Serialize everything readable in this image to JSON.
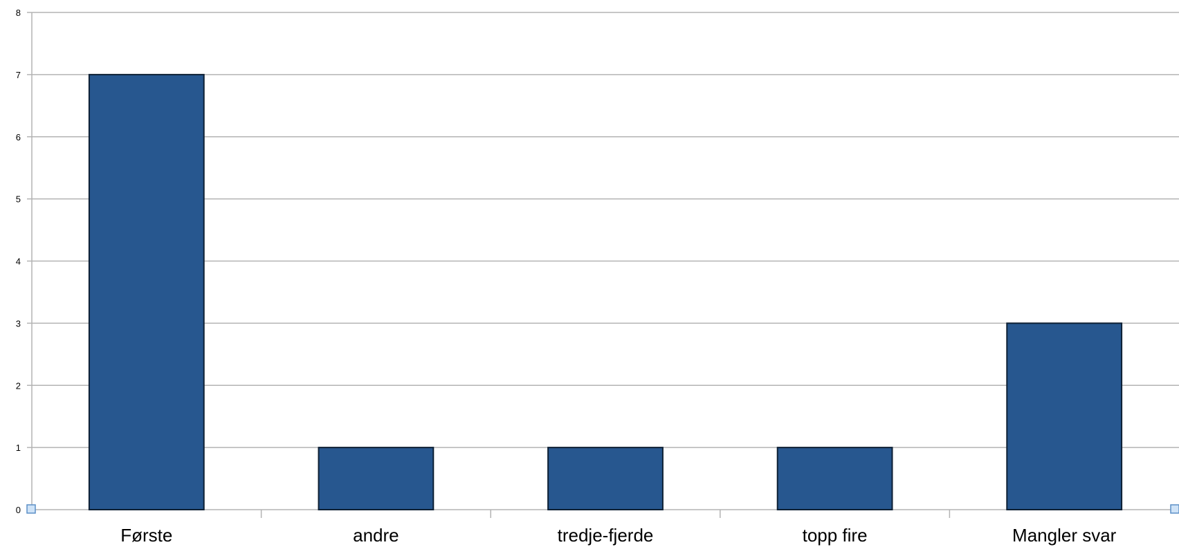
{
  "chart_data": {
    "type": "bar",
    "categories": [
      "Første",
      "andre",
      "tredje-fjerde",
      "topp fire",
      "Mangler svar"
    ],
    "values": [
      7,
      1,
      1,
      1,
      3
    ],
    "title": "",
    "xlabel": "",
    "ylabel": "",
    "ylim": [
      0,
      8
    ],
    "yticks": [
      "0",
      "1",
      "2",
      "3",
      "4",
      "5",
      "6",
      "7",
      "8"
    ],
    "grid": true,
    "legend": "none",
    "colors": {
      "bar_fill": "#27578f",
      "bar_stroke": "#0d1f33",
      "grid": "#b3b3b3",
      "axis": "#b3b3b3",
      "handle_fill": "#cfe3f7",
      "handle_stroke": "#5b8fc7"
    }
  }
}
